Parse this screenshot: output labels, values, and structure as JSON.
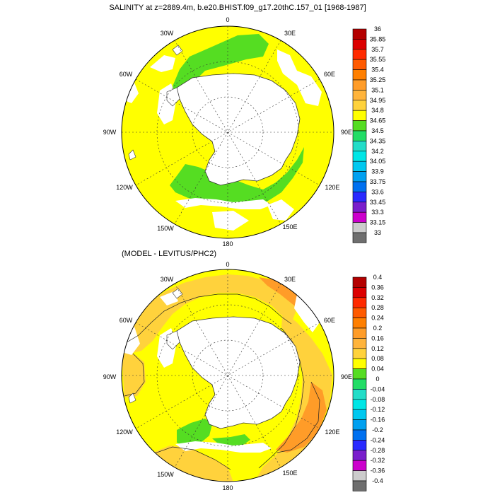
{
  "maps": [
    {
      "id": "top",
      "title": "SALINITY at z=2889.4m, b.e20.BHIST.f09_g17.20thC.157_01 [1968-1987]",
      "lon_labels": {
        "n": "0",
        "nne": "30E",
        "ene": "60E",
        "e": "90E",
        "ese": "120E",
        "sse": "150E",
        "s": "180",
        "ssw": "150W",
        "wsw": "120W",
        "w": "90W",
        "wnw": "60W",
        "nnw": "30W"
      },
      "colorbar": {
        "labels": [
          "36",
          "35.85",
          "35.7",
          "35.55",
          "35.4",
          "35.25",
          "35.1",
          "34.95",
          "34.8",
          "34.65",
          "34.5",
          "34.35",
          "34.2",
          "34.05",
          "33.9",
          "33.75",
          "33.6",
          "33.45",
          "33.3",
          "33.15",
          "33"
        ],
        "colors": [
          "#b40000",
          "#dc0000",
          "#ff2a00",
          "#ff5a00",
          "#ff7f00",
          "#ff9c28",
          "#ffb43c",
          "#ffd23c",
          "#ffff00",
          "#55dd22",
          "#22dd66",
          "#22ddc8",
          "#00e6e6",
          "#00c8f0",
          "#00a0f0",
          "#0070f0",
          "#2a2aff",
          "#7a1ecc",
          "#cc00cc",
          "#cccccc",
          "#6e6e6e"
        ]
      }
    },
    {
      "id": "bottom",
      "title": "(MODEL - LEVITUS/PHC2)",
      "lon_labels": {
        "n": "0",
        "nne": "30E",
        "ene": "60E",
        "e": "90E",
        "ese": "120E",
        "sse": "150E",
        "s": "180",
        "ssw": "150W",
        "wsw": "120W",
        "w": "90W",
        "wnw": "60W",
        "nnw": "30W"
      },
      "colorbar": {
        "labels": [
          "0.4",
          "0.36",
          "0.32",
          "0.28",
          "0.24",
          "0.2",
          "0.16",
          "0.12",
          "0.08",
          "0.04",
          "0",
          "-0.04",
          "-0.08",
          "-0.12",
          "-0.16",
          "-0.2",
          "-0.24",
          "-0.28",
          "-0.32",
          "-0.36",
          "-0.4"
        ],
        "colors": [
          "#b40000",
          "#dc0000",
          "#ff2a00",
          "#ff5a00",
          "#ff7f00",
          "#ff9c28",
          "#ffb43c",
          "#ffd23c",
          "#ffff00",
          "#55dd22",
          "#22dd66",
          "#22ddc8",
          "#00e6e6",
          "#00c8f0",
          "#00a0f0",
          "#0070f0",
          "#2a2aff",
          "#7a1ecc",
          "#cc00cc",
          "#cccccc",
          "#6e6e6e"
        ]
      }
    }
  ]
}
